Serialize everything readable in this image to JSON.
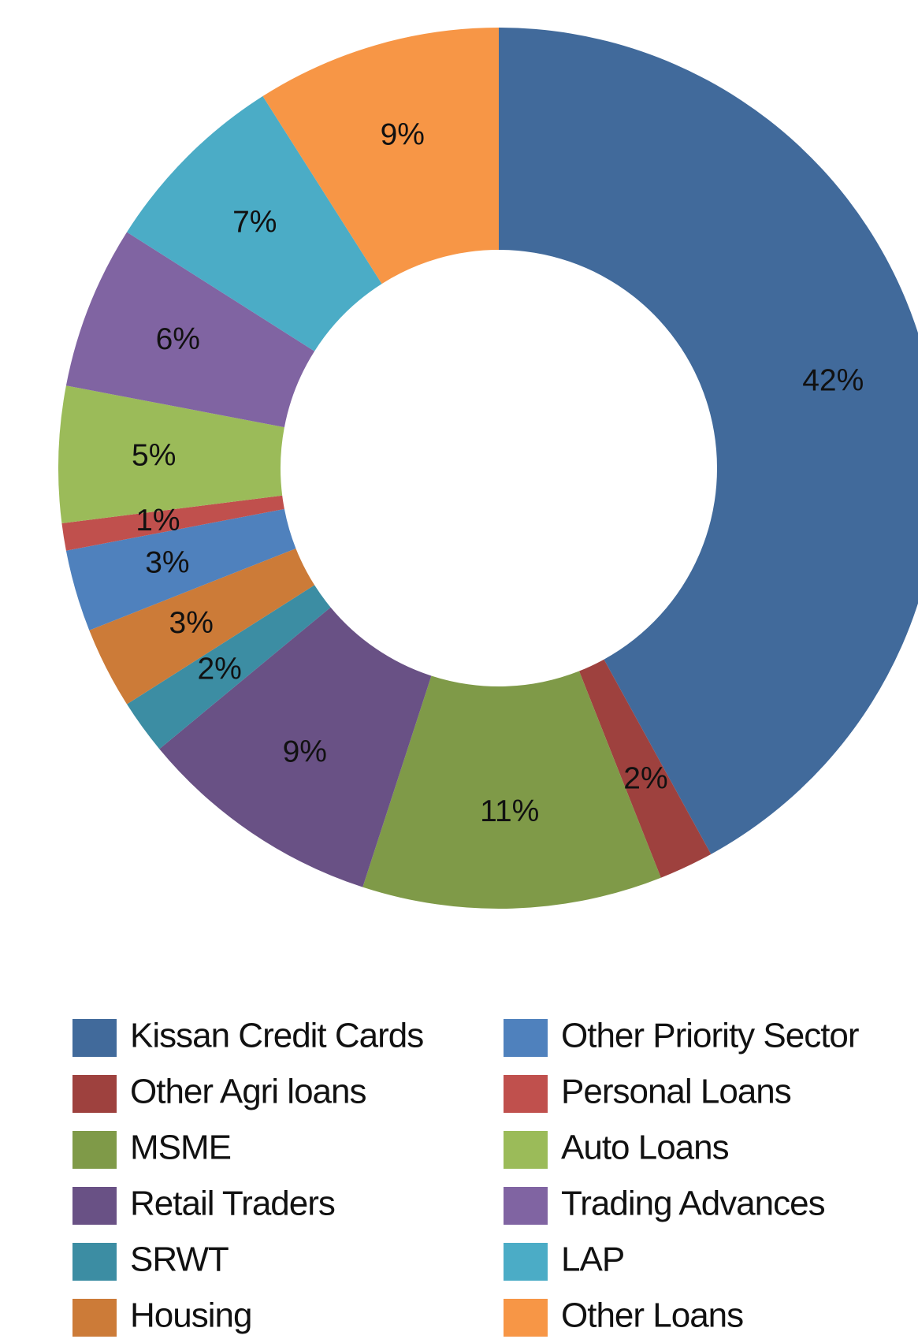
{
  "chart_data": {
    "type": "donut",
    "categories": [
      "Kissan Credit Cards",
      "Other Agri loans",
      "MSME",
      "Retail Traders",
      "SRWT",
      "Housing",
      "Other Priority Sector",
      "Personal Loans",
      "Auto Loans",
      "Trading Advances",
      "LAP",
      "Other Loans"
    ],
    "values": [
      42,
      2,
      11,
      9,
      2,
      3,
      3,
      1,
      5,
      6,
      7,
      9
    ],
    "value_labels": [
      "42%",
      "2%",
      "11%",
      "9%",
      "2%",
      "3%",
      "3%",
      "1%",
      "5%",
      "6%",
      "7%",
      "9%"
    ],
    "colors": [
      "#416a9b",
      "#9e413e",
      "#7f9a48",
      "#695185",
      "#3c8da3",
      "#cc7b38",
      "#4f81bd",
      "#c0504d",
      "#9bbb59",
      "#8064a2",
      "#4bacc6",
      "#f79646"
    ],
    "legend": "bottom"
  }
}
